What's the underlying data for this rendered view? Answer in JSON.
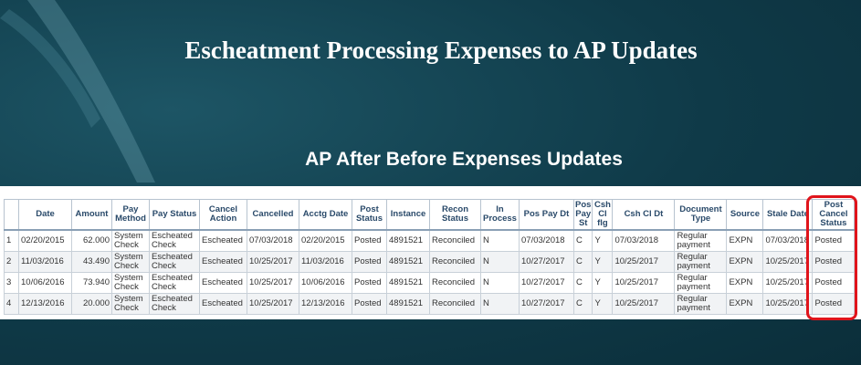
{
  "title": "Escheatment Processing Expenses to AP Updates",
  "subtitle": "AP After Before Expenses Updates",
  "colors": {
    "highlight": "#e0141b",
    "background": "#0f3a48"
  },
  "table": {
    "headers": [
      "",
      "Date",
      "Amount",
      "Pay Method",
      "Pay Status",
      "Cancel Action",
      "Cancelled",
      "Acctg Date",
      "Post Status",
      "Instance",
      "Recon Status",
      "In Process",
      "Pos Pay Dt",
      "Pos Pay St",
      "Csh Cl flg",
      "Csh Cl Dt",
      "Document Type",
      "Source",
      "Stale Date",
      "Post Cancel Status"
    ],
    "rows": [
      [
        "1",
        "02/20/2015",
        "62.000",
        "System Check",
        "Escheated Check",
        "Escheated",
        "07/03/2018",
        "02/20/2015",
        "Posted",
        "4891521",
        "Reconciled",
        "N",
        "07/03/2018",
        "C",
        "Y",
        "07/03/2018",
        "Regular payment",
        "EXPN",
        "07/03/2018",
        "Posted"
      ],
      [
        "2",
        "11/03/2016",
        "43.490",
        "System Check",
        "Escheated Check",
        "Escheated",
        "10/25/2017",
        "11/03/2016",
        "Posted",
        "4891521",
        "Reconciled",
        "N",
        "10/27/2017",
        "C",
        "Y",
        "10/25/2017",
        "Regular payment",
        "EXPN",
        "10/25/2017",
        "Posted"
      ],
      [
        "3",
        "10/06/2016",
        "73.940",
        "System Check",
        "Escheated Check",
        "Escheated",
        "10/25/2017",
        "10/06/2016",
        "Posted",
        "4891521",
        "Reconciled",
        "N",
        "10/27/2017",
        "C",
        "Y",
        "10/25/2017",
        "Regular payment",
        "EXPN",
        "10/25/2017",
        "Posted"
      ],
      [
        "4",
        "12/13/2016",
        "20.000",
        "System Check",
        "Escheated Check",
        "Escheated",
        "10/25/2017",
        "12/13/2016",
        "Posted",
        "4891521",
        "Reconciled",
        "N",
        "10/27/2017",
        "C",
        "Y",
        "10/25/2017",
        "Regular payment",
        "EXPN",
        "10/25/2017",
        "Posted"
      ]
    ]
  }
}
